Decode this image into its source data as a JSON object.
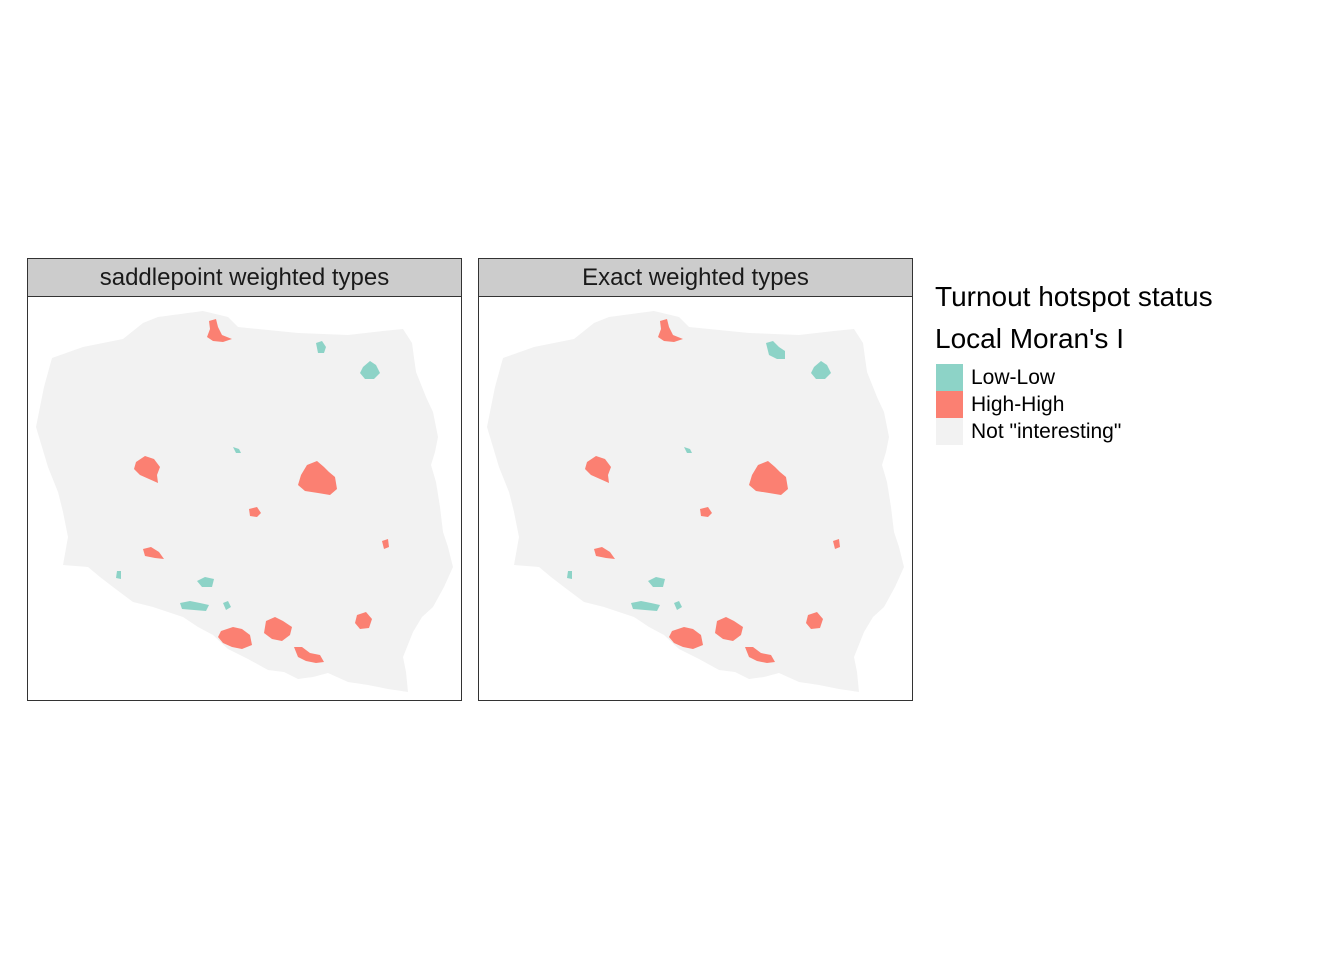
{
  "panels": [
    {
      "title": "saddlepoint weighted types"
    },
    {
      "title": "Exact weighted types"
    }
  ],
  "legend": {
    "title": "Turnout hotspot status",
    "subtitle": "Local Moran's I",
    "items": [
      {
        "label": "Low-Low",
        "color": "#8dd3c7"
      },
      {
        "label": "High-High",
        "color": "#fb8072"
      },
      {
        "label": "Not \"interesting\"",
        "color": "#f2f2f2"
      }
    ]
  }
}
